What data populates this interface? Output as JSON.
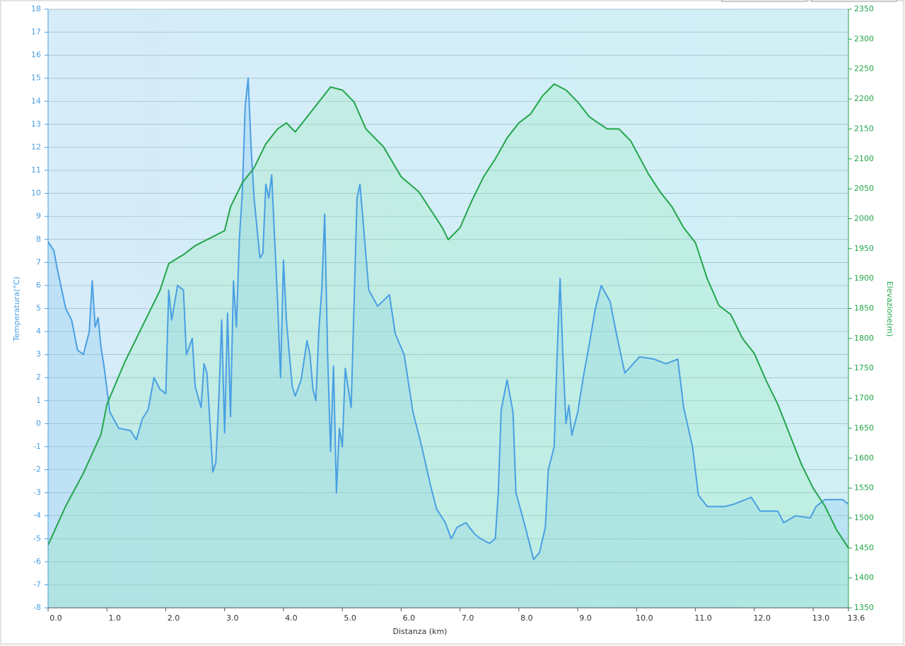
{
  "chart_data": {
    "type": "line",
    "x_label": "Distanza  (km)",
    "y_label": "Temperatura(°C)",
    "y2_label": "Elevazione(m)",
    "xlim": [
      0,
      13.6
    ],
    "xticks": [
      {
        "value": 0,
        "label": "0.0"
      },
      {
        "value": 1,
        "label": "1.0"
      },
      {
        "value": 2,
        "label": "2.0"
      },
      {
        "value": 3,
        "label": "3.0"
      },
      {
        "value": 4,
        "label": "4.0"
      },
      {
        "value": 5,
        "label": "5.0"
      },
      {
        "value": 6,
        "label": "6.0"
      },
      {
        "value": 7,
        "label": "7.0"
      },
      {
        "value": 8,
        "label": "8.0"
      },
      {
        "value": 9,
        "label": "9.0"
      },
      {
        "value": 10,
        "label": "10.0"
      },
      {
        "value": 11,
        "label": "11.0"
      },
      {
        "value": 12,
        "label": "12.0"
      },
      {
        "value": 13,
        "label": "13.0"
      },
      13.6
    ],
    "ylim": [
      -8,
      18
    ],
    "yticks": [
      -8,
      -7,
      -6,
      -5,
      -4,
      -3,
      -2,
      -1,
      0,
      1,
      2,
      3,
      4,
      5,
      6,
      7,
      8,
      9,
      10,
      11,
      12,
      13,
      14,
      15,
      16,
      17,
      18
    ],
    "y2lim": [
      1350,
      2350
    ],
    "y2ticks": [
      1350,
      1400,
      1450,
      1500,
      1550,
      1600,
      1650,
      1700,
      1750,
      1800,
      1850,
      1900,
      1950,
      2000,
      2050,
      2100,
      2150,
      2200,
      2250,
      2300,
      2350
    ],
    "grid": true,
    "series": [
      {
        "color": "#4a9fe3",
        "fill": "rgba(120,190,240,0.25)",
        "axis": "y",
        "x": [
          0.0,
          0.1,
          0.15,
          0.2,
          0.3,
          0.4,
          0.5,
          0.6,
          0.7,
          0.75,
          0.8,
          0.85,
          0.9,
          0.95,
          1.0,
          1.05,
          1.2,
          1.4,
          1.5,
          1.6,
          1.7,
          1.8,
          1.9,
          2.0,
          2.05,
          2.1,
          2.2,
          2.3,
          2.35,
          2.45,
          2.5,
          2.6,
          2.65,
          2.7,
          2.8,
          2.85,
          2.9,
          2.95,
          3.0,
          3.05,
          3.1,
          3.15,
          3.2,
          3.25,
          3.3,
          3.35,
          3.4,
          3.45,
          3.5,
          3.6,
          3.65,
          3.7,
          3.75,
          3.8,
          3.85,
          3.9,
          3.95,
          4.0,
          4.05,
          4.1,
          4.15,
          4.2,
          4.3,
          4.4,
          4.45,
          4.5,
          4.55,
          4.6,
          4.65,
          4.7,
          4.75,
          4.8,
          4.85,
          4.9,
          4.95,
          5.0,
          5.05,
          5.15,
          5.25,
          5.3,
          5.45,
          5.6,
          5.8,
          5.9,
          6.05,
          6.2,
          6.35,
          6.5,
          6.6,
          6.75,
          6.85,
          6.95,
          7.1,
          7.25,
          7.35,
          7.5,
          7.6,
          7.65,
          7.7,
          7.8,
          7.9,
          7.95,
          8.1,
          8.2,
          8.25,
          8.35,
          8.45,
          8.5,
          8.6,
          8.65,
          8.7,
          8.75,
          8.8,
          8.85,
          8.9,
          9.0,
          9.1,
          9.2,
          9.3,
          9.4,
          9.55,
          9.65,
          9.8,
          10.05,
          10.3,
          10.5,
          10.7,
          10.8,
          10.95,
          11.05,
          11.2,
          11.5,
          11.65,
          11.95,
          12.1,
          12.4,
          12.5,
          12.7,
          12.95,
          13.05,
          13.2,
          13.5,
          13.6
        ],
        "values": [
          7.9,
          7.5,
          6.8,
          6.2,
          5.0,
          4.5,
          3.2,
          3.0,
          4.0,
          6.2,
          4.2,
          4.6,
          3.3,
          2.5,
          1.5,
          0.5,
          -0.2,
          -0.3,
          -0.7,
          0.2,
          0.6,
          2.0,
          1.5,
          1.3,
          5.8,
          4.5,
          6.0,
          5.8,
          3.0,
          3.7,
          1.6,
          0.7,
          2.6,
          2.2,
          -2.1,
          -1.7,
          1.0,
          4.5,
          -0.4,
          4.8,
          0.3,
          6.2,
          4.2,
          8.0,
          10.0,
          13.8,
          15.0,
          12.0,
          9.8,
          7.2,
          7.4,
          10.4,
          9.8,
          10.8,
          8.0,
          5.3,
          2.0,
          7.1,
          4.5,
          3.0,
          1.6,
          1.2,
          1.9,
          3.6,
          3.0,
          1.5,
          1.0,
          4.0,
          5.8,
          9.1,
          3.0,
          -1.2,
          2.5,
          -3.0,
          -0.2,
          -1.0,
          2.4,
          0.7,
          9.8,
          10.4,
          5.8,
          5.1,
          5.6,
          3.9,
          3.0,
          0.5,
          -1.0,
          -2.7,
          -3.7,
          -4.3,
          -5.0,
          -4.5,
          -4.3,
          -4.8,
          -5.0,
          -5.2,
          -5.0,
          -3.0,
          0.6,
          1.9,
          0.5,
          -3.0,
          -4.4,
          -5.4,
          -5.9,
          -5.6,
          -4.5,
          -2.0,
          -1.0,
          3.0,
          6.3,
          2.8,
          0.0,
          0.8,
          -0.5,
          0.5,
          2.1,
          3.5,
          5.0,
          6.0,
          5.3,
          4.0,
          2.2,
          2.9,
          2.8,
          2.6,
          2.8,
          0.7,
          -1.0,
          -3.1,
          -3.6,
          -3.6,
          -3.5,
          -3.2,
          -3.8,
          -3.8,
          -4.3,
          -4.0,
          -4.1,
          -3.6,
          -3.3,
          -3.3,
          -3.5
        ]
      },
      {
        "color": "#22a54a",
        "fill": "rgba(140,235,170,0.25)",
        "axis": "y2",
        "x": [
          0.0,
          0.3,
          0.6,
          0.9,
          1.0,
          1.3,
          1.6,
          1.9,
          2.05,
          2.3,
          2.5,
          2.8,
          3.0,
          3.1,
          3.3,
          3.5,
          3.7,
          3.9,
          4.05,
          4.2,
          4.4,
          4.6,
          4.8,
          5.0,
          5.2,
          5.4,
          5.7,
          6.0,
          6.3,
          6.5,
          6.7,
          6.8,
          7.0,
          7.2,
          7.4,
          7.6,
          7.8,
          8.0,
          8.2,
          8.4,
          8.6,
          8.8,
          9.0,
          9.2,
          9.5,
          9.7,
          9.9,
          10.2,
          10.4,
          10.6,
          10.8,
          11.0,
          11.2,
          11.4,
          11.6,
          11.8,
          12.0,
          12.2,
          12.4,
          12.6,
          12.8,
          13.0,
          13.2,
          13.4,
          13.6
        ],
        "values": [
          1455,
          1520,
          1575,
          1640,
          1690,
          1760,
          1820,
          1880,
          1925,
          1940,
          1955,
          1970,
          1980,
          2020,
          2060,
          2085,
          2125,
          2150,
          2160,
          2145,
          2170,
          2195,
          2220,
          2215,
          2195,
          2150,
          2120,
          2070,
          2045,
          2015,
          1985,
          1965,
          1985,
          2030,
          2070,
          2100,
          2135,
          2160,
          2175,
          2205,
          2225,
          2215,
          2195,
          2170,
          2150,
          2150,
          2130,
          2075,
          2045,
          2020,
          1985,
          1960,
          1900,
          1855,
          1840,
          1800,
          1775,
          1730,
          1690,
          1640,
          1590,
          1550,
          1520,
          1480,
          1450
        ]
      }
    ]
  }
}
